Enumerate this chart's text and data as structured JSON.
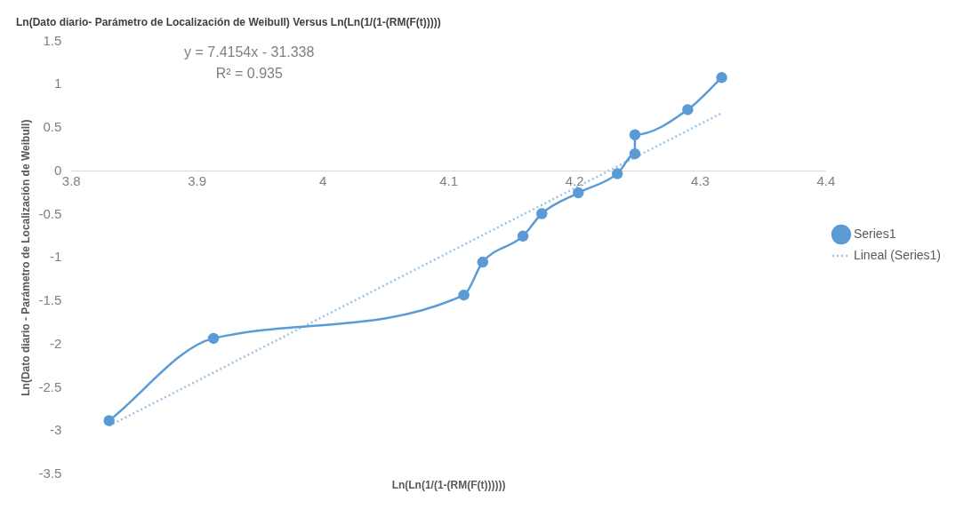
{
  "chart_data": {
    "type": "line",
    "title": "Ln(Dato diario- Parámetro de Localización de Weibull) Versus Ln(Ln(1/(1-(RM(F(t)))))",
    "xlabel": "Ln(Ln(1/(1-(RM(F(t))))))",
    "ylabel": "Ln(Dato diario - Parámetro de Localización de Weibull)",
    "x": [
      3.83,
      3.913,
      4.112,
      4.127,
      4.159,
      4.174,
      4.203,
      4.234,
      4.248,
      4.248,
      4.29,
      4.317
    ],
    "series": [
      {
        "name": "Series1",
        "color": "#5b9bd5",
        "values": [
          -2.88,
          -1.93,
          -1.43,
          -1.05,
          -0.75,
          -0.49,
          -0.25,
          -0.03,
          0.2,
          0.42,
          0.71,
          1.08
        ],
        "marker": "circle",
        "line_style": "solid"
      },
      {
        "name": "Lineal (Series1)",
        "type": "line",
        "color": "#9dc3e6",
        "x": [
          3.83,
          4.317
        ],
        "values": [
          -2.94,
          0.67
        ],
        "marker": "none",
        "line_style": "dotted"
      }
    ],
    "xlim": [
      3.8,
      4.4
    ],
    "xticks": [
      3.8,
      3.9,
      4,
      4.1,
      4.2,
      4.3,
      4.4
    ],
    "ylim": [
      -3.5,
      1.5
    ],
    "yticks": [
      -3.5,
      -3,
      -2.5,
      -2,
      -1.5,
      -1,
      -0.5,
      0,
      0.5,
      1,
      1.5
    ],
    "grid": false,
    "legend": "right",
    "annotations": [
      "y = 7.4154x - 31.338",
      "R² = 0.935"
    ]
  }
}
